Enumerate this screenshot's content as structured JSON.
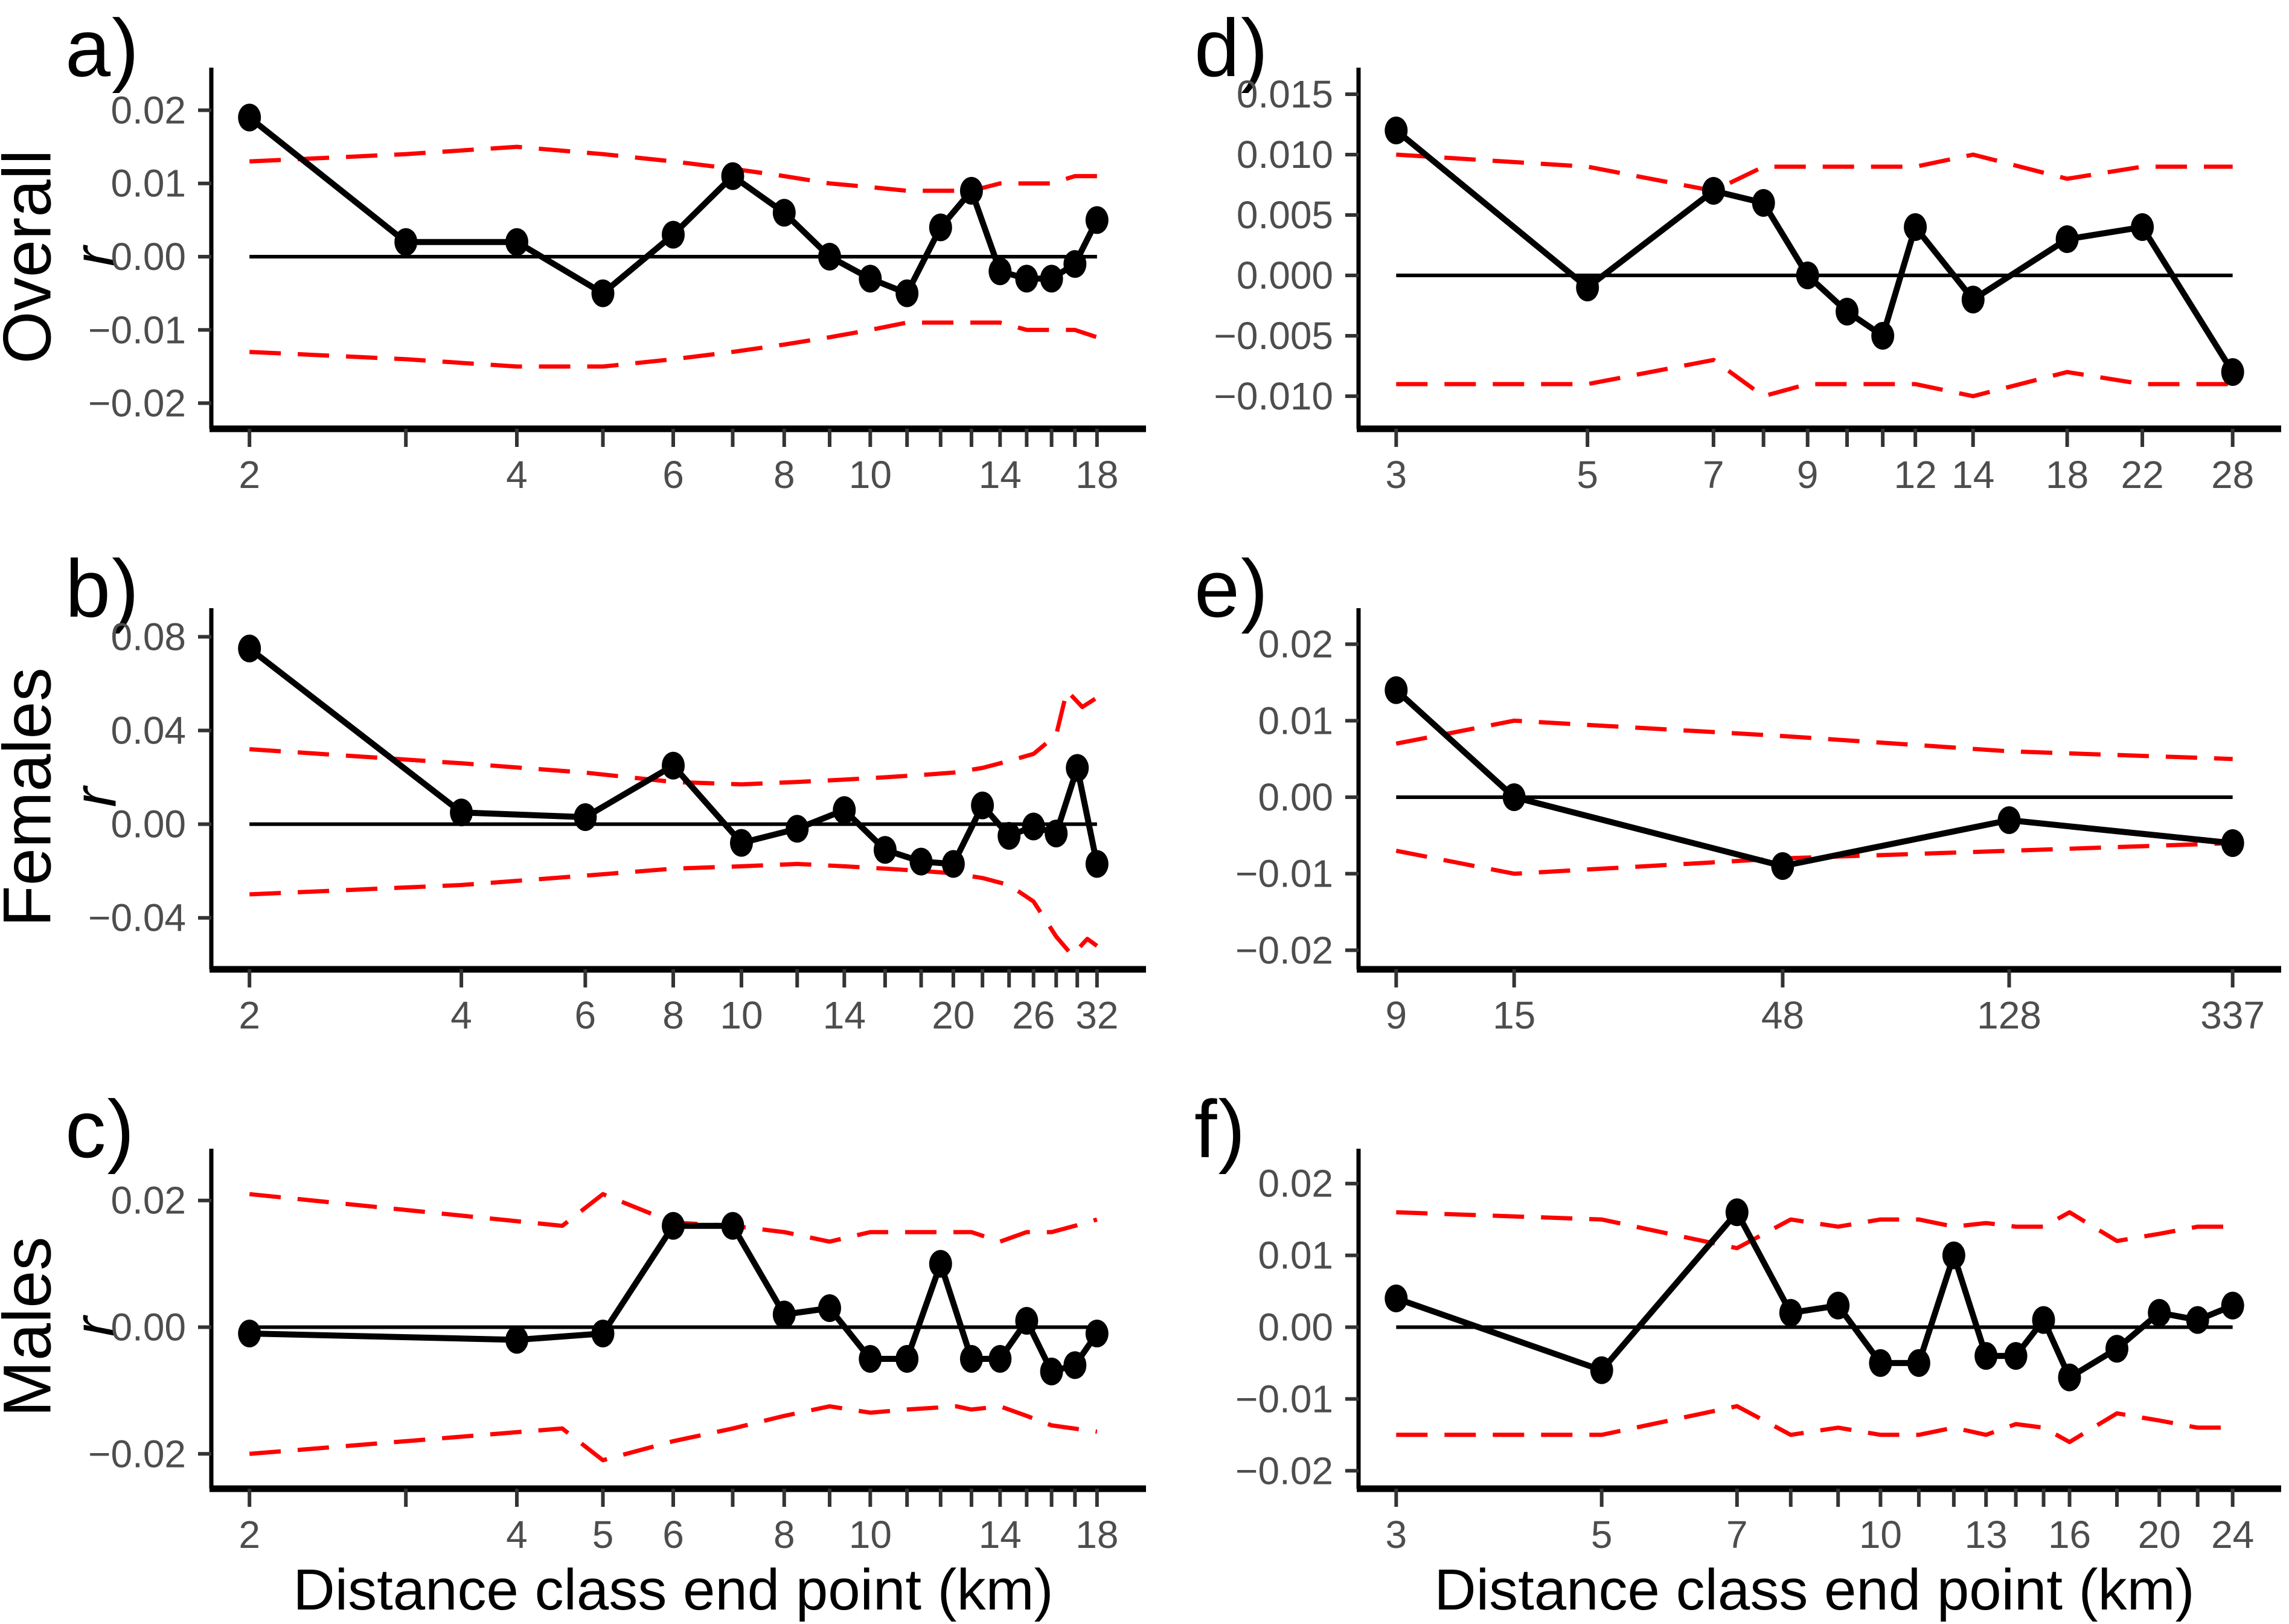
{
  "figure": {
    "xaxis_title": "Distance class end point (km)",
    "colors": {
      "series_line": "#000000",
      "point_fill": "#000000",
      "envelope_red": "#FF0000",
      "zero_line": "#000000",
      "axis_line": "#000000",
      "tick_text": "#4D4D4D"
    }
  },
  "chart_data": [
    {
      "type": "line",
      "letter": "a)",
      "row_label": "Overall",
      "ylabel": "r",
      "x_scale": "log",
      "x_domain": [
        2,
        18
      ],
      "y_domain": [
        -0.0235,
        0.0235
      ],
      "x_ticks": [
        {
          "v": 2,
          "l": "2"
        },
        {
          "v": 3,
          "l": ""
        },
        {
          "v": 4,
          "l": "4"
        },
        {
          "v": 5,
          "l": ""
        },
        {
          "v": 6,
          "l": "6"
        },
        {
          "v": 7,
          "l": ""
        },
        {
          "v": 8,
          "l": "8"
        },
        {
          "v": 9,
          "l": ""
        },
        {
          "v": 10,
          "l": "10"
        },
        {
          "v": 11,
          "l": ""
        },
        {
          "v": 12,
          "l": ""
        },
        {
          "v": 13,
          "l": ""
        },
        {
          "v": 14,
          "l": "14"
        },
        {
          "v": 15,
          "l": ""
        },
        {
          "v": 16,
          "l": ""
        },
        {
          "v": 17,
          "l": ""
        },
        {
          "v": 18,
          "l": "18"
        }
      ],
      "y_ticks": [
        {
          "v": 0.02,
          "l": "0.02"
        },
        {
          "v": 0.01,
          "l": "0.01"
        },
        {
          "v": 0,
          "l": "0.00"
        },
        {
          "v": -0.01,
          "l": "−0.01"
        },
        {
          "v": -0.02,
          "l": "−0.02"
        }
      ],
      "points": {
        "x": [
          2,
          3,
          4,
          5,
          6,
          7,
          8,
          9,
          10,
          11,
          12,
          13,
          14,
          15,
          16,
          17,
          18
        ],
        "y": [
          0.019,
          0.002,
          0.002,
          -0.005,
          0.003,
          0.011,
          0.006,
          0.0,
          -0.003,
          -0.005,
          0.004,
          0.009,
          -0.002,
          -0.003,
          -0.003,
          -0.001,
          0.005
        ]
      },
      "upper": {
        "x": [
          2,
          3,
          4,
          5,
          6,
          7,
          8,
          9,
          10,
          11,
          12,
          13,
          14,
          15,
          16,
          17,
          18
        ],
        "y": [
          0.013,
          0.014,
          0.015,
          0.014,
          0.013,
          0.012,
          0.011,
          0.01,
          0.0095,
          0.009,
          0.009,
          0.009,
          0.01,
          0.01,
          0.01,
          0.011,
          0.011
        ]
      },
      "lower": {
        "x": [
          2,
          3,
          4,
          5,
          6,
          7,
          8,
          9,
          10,
          11,
          12,
          13,
          14,
          15,
          16,
          17,
          18
        ],
        "y": [
          -0.013,
          -0.014,
          -0.015,
          -0.015,
          -0.014,
          -0.013,
          -0.012,
          -0.011,
          -0.01,
          -0.009,
          -0.009,
          -0.009,
          -0.009,
          -0.01,
          -0.01,
          -0.01,
          -0.011
        ]
      },
      "zero_line": true
    },
    {
      "type": "line",
      "letter": "b)",
      "row_label": "Females",
      "ylabel": "r",
      "x_scale": "log",
      "x_domain": [
        2,
        32
      ],
      "y_domain": [
        -0.062,
        0.085
      ],
      "x_ticks": [
        {
          "v": 2,
          "l": "2"
        },
        {
          "v": 4,
          "l": "4"
        },
        {
          "v": 6,
          "l": "6"
        },
        {
          "v": 8,
          "l": "8"
        },
        {
          "v": 10,
          "l": "10"
        },
        {
          "v": 12,
          "l": ""
        },
        {
          "v": 14,
          "l": "14"
        },
        {
          "v": 16,
          "l": ""
        },
        {
          "v": 18,
          "l": ""
        },
        {
          "v": 20,
          "l": "20"
        },
        {
          "v": 22,
          "l": ""
        },
        {
          "v": 24,
          "l": ""
        },
        {
          "v": 26,
          "l": "26"
        },
        {
          "v": 28,
          "l": ""
        },
        {
          "v": 30,
          "l": ""
        },
        {
          "v": 32,
          "l": "32"
        }
      ],
      "y_ticks": [
        {
          "v": 0.08,
          "l": "0.08"
        },
        {
          "v": 0.04,
          "l": "0.04"
        },
        {
          "v": 0,
          "l": "0.00"
        },
        {
          "v": -0.04,
          "l": "−0.04"
        }
      ],
      "points": {
        "x": [
          2,
          4,
          6,
          8,
          10,
          12,
          14,
          16,
          18,
          20,
          22,
          24,
          26,
          28,
          30,
          32
        ],
        "y": [
          0.075,
          0.005,
          0.003,
          0.025,
          -0.008,
          -0.002,
          0.006,
          -0.011,
          -0.016,
          -0.017,
          0.008,
          -0.005,
          -0.001,
          -0.004,
          0.024,
          -0.017
        ]
      },
      "upper": {
        "x": [
          2,
          4,
          6,
          8,
          10,
          12,
          14,
          16,
          18,
          20,
          22,
          24,
          26,
          28,
          29,
          30.5,
          32
        ],
        "y": [
          0.032,
          0.026,
          0.022,
          0.018,
          0.017,
          0.018,
          0.019,
          0.02,
          0.021,
          0.022,
          0.024,
          0.027,
          0.03,
          0.038,
          0.057,
          0.05,
          0.054
        ]
      },
      "lower": {
        "x": [
          2,
          4,
          6,
          8,
          10,
          12,
          14,
          16,
          18,
          20,
          22,
          24,
          26,
          28,
          29.5,
          31,
          32
        ],
        "y": [
          -0.03,
          -0.026,
          -0.022,
          -0.019,
          -0.018,
          -0.017,
          -0.018,
          -0.019,
          -0.02,
          -0.021,
          -0.023,
          -0.026,
          -0.033,
          -0.048,
          -0.056,
          -0.049,
          -0.052
        ]
      },
      "zero_line": true
    },
    {
      "type": "line",
      "letter": "c)",
      "row_label": "Males",
      "ylabel": "r",
      "x_scale": "log",
      "x_domain": [
        2,
        18
      ],
      "y_domain": [
        -0.0255,
        0.0255
      ],
      "x_ticks": [
        {
          "v": 2,
          "l": "2"
        },
        {
          "v": 3,
          "l": ""
        },
        {
          "v": 4,
          "l": "4"
        },
        {
          "v": 5,
          "l": "5"
        },
        {
          "v": 6,
          "l": "6"
        },
        {
          "v": 7,
          "l": ""
        },
        {
          "v": 8,
          "l": "8"
        },
        {
          "v": 9,
          "l": ""
        },
        {
          "v": 10,
          "l": "10"
        },
        {
          "v": 11,
          "l": ""
        },
        {
          "v": 12,
          "l": ""
        },
        {
          "v": 13,
          "l": ""
        },
        {
          "v": 14,
          "l": "14"
        },
        {
          "v": 15,
          "l": ""
        },
        {
          "v": 16,
          "l": ""
        },
        {
          "v": 17,
          "l": ""
        },
        {
          "v": 18,
          "l": "18"
        }
      ],
      "y_ticks": [
        {
          "v": 0.02,
          "l": "0.02"
        },
        {
          "v": 0,
          "l": "0.00"
        },
        {
          "v": -0.02,
          "l": "−0.02"
        }
      ],
      "points": {
        "x": [
          2,
          4,
          5,
          6,
          7,
          8,
          9,
          10,
          11,
          12,
          13,
          14,
          15,
          16,
          17,
          18
        ],
        "y": [
          -0.001,
          -0.002,
          -0.001,
          0.016,
          0.016,
          0.002,
          0.003,
          -0.005,
          -0.005,
          0.01,
          -0.005,
          -0.005,
          0.001,
          -0.007,
          -0.006,
          -0.001
        ]
      },
      "upper": {
        "x": [
          2,
          4.5,
          5,
          6,
          7,
          8,
          9,
          10,
          12,
          13,
          14,
          15,
          16,
          17,
          18
        ],
        "y": [
          0.021,
          0.016,
          0.021,
          0.0165,
          0.016,
          0.015,
          0.0135,
          0.015,
          0.015,
          0.015,
          0.0135,
          0.015,
          0.015,
          0.016,
          0.017
        ]
      },
      "lower": {
        "x": [
          2,
          4.5,
          5,
          6,
          7,
          8,
          9,
          10,
          11,
          12.5,
          13,
          14,
          15,
          16,
          18
        ],
        "y": [
          -0.02,
          -0.016,
          -0.021,
          -0.018,
          -0.016,
          -0.014,
          -0.0125,
          -0.0135,
          -0.013,
          -0.0125,
          -0.013,
          -0.0125,
          -0.014,
          -0.0155,
          -0.0165
        ]
      },
      "zero_line": true
    },
    {
      "type": "line",
      "letter": "d)",
      "row_label": null,
      "ylabel": "r",
      "x_scale": "log",
      "x_domain": [
        3,
        28
      ],
      "y_domain": [
        -0.0127,
        0.0158
      ],
      "x_ticks": [
        {
          "v": 3,
          "l": "3"
        },
        {
          "v": 5,
          "l": "5"
        },
        {
          "v": 7,
          "l": "7"
        },
        {
          "v": 8,
          "l": ""
        },
        {
          "v": 9,
          "l": "9"
        },
        {
          "v": 10,
          "l": ""
        },
        {
          "v": 11,
          "l": ""
        },
        {
          "v": 12,
          "l": "12"
        },
        {
          "v": 14,
          "l": "14"
        },
        {
          "v": 18,
          "l": "18"
        },
        {
          "v": 22,
          "l": "22"
        },
        {
          "v": 28,
          "l": "28"
        }
      ],
      "y_ticks": [
        {
          "v": 0.015,
          "l": "0.015"
        },
        {
          "v": 0.01,
          "l": "0.010"
        },
        {
          "v": 0.005,
          "l": "0.005"
        },
        {
          "v": 0,
          "l": "0.000"
        },
        {
          "v": -0.005,
          "l": "−0.005"
        },
        {
          "v": -0.01,
          "l": "−0.010"
        }
      ],
      "points": {
        "x": [
          3,
          5,
          7,
          8,
          9,
          10,
          11,
          12,
          14,
          18,
          22,
          28
        ],
        "y": [
          0.012,
          -0.001,
          0.007,
          0.006,
          0.0,
          -0.003,
          -0.005,
          0.004,
          -0.002,
          0.003,
          0.004,
          -0.008
        ]
      },
      "upper": {
        "x": [
          3,
          5,
          7,
          8,
          9,
          10,
          11,
          12,
          14,
          18,
          22,
          28
        ],
        "y": [
          0.01,
          0.009,
          0.007,
          0.009,
          0.009,
          0.009,
          0.009,
          0.009,
          0.01,
          0.008,
          0.009,
          0.009
        ]
      },
      "lower": {
        "x": [
          3,
          5,
          7,
          8,
          9,
          10,
          11,
          12,
          14,
          18,
          22,
          28
        ],
        "y": [
          -0.009,
          -0.009,
          -0.007,
          -0.01,
          -0.009,
          -0.009,
          -0.009,
          -0.009,
          -0.01,
          -0.008,
          -0.009,
          -0.009
        ]
      },
      "zero_line": true
    },
    {
      "type": "line",
      "letter": "e)",
      "row_label": null,
      "ylabel": "r",
      "x_scale": "log",
      "x_domain": [
        9,
        337
      ],
      "y_domain": [
        -0.0225,
        0.0225
      ],
      "x_ticks": [
        {
          "v": 9,
          "l": "9"
        },
        {
          "v": 15,
          "l": "15"
        },
        {
          "v": 48,
          "l": "48"
        },
        {
          "v": 128,
          "l": "128"
        },
        {
          "v": 337,
          "l": "337"
        }
      ],
      "y_ticks": [
        {
          "v": 0.02,
          "l": "0.02"
        },
        {
          "v": 0.01,
          "l": "0.01"
        },
        {
          "v": 0,
          "l": "0.00"
        },
        {
          "v": -0.01,
          "l": "−0.01"
        },
        {
          "v": -0.02,
          "l": "−0.02"
        }
      ],
      "points": {
        "x": [
          9,
          15,
          48,
          128,
          337
        ],
        "y": [
          0.014,
          0.0,
          -0.009,
          -0.003,
          -0.006
        ]
      },
      "upper": {
        "x": [
          9,
          15,
          48,
          128,
          337
        ],
        "y": [
          0.007,
          0.01,
          0.008,
          0.006,
          0.005
        ]
      },
      "lower": {
        "x": [
          9,
          15,
          48,
          128,
          337
        ],
        "y": [
          -0.007,
          -0.01,
          -0.008,
          -0.007,
          -0.006
        ]
      },
      "zero_line": true
    },
    {
      "type": "line",
      "letter": "f)",
      "row_label": null,
      "ylabel": "r",
      "x_scale": "log",
      "x_domain": [
        3,
        24
      ],
      "y_domain": [
        -0.0225,
        0.0225
      ],
      "x_ticks": [
        {
          "v": 3,
          "l": "3"
        },
        {
          "v": 5,
          "l": "5"
        },
        {
          "v": 7,
          "l": "7"
        },
        {
          "v": 8,
          "l": ""
        },
        {
          "v": 9,
          "l": ""
        },
        {
          "v": 10,
          "l": "10"
        },
        {
          "v": 11,
          "l": ""
        },
        {
          "v": 12,
          "l": ""
        },
        {
          "v": 13,
          "l": "13"
        },
        {
          "v": 14,
          "l": ""
        },
        {
          "v": 15,
          "l": ""
        },
        {
          "v": 16,
          "l": "16"
        },
        {
          "v": 18,
          "l": ""
        },
        {
          "v": 20,
          "l": "20"
        },
        {
          "v": 22,
          "l": ""
        },
        {
          "v": 24,
          "l": "24"
        }
      ],
      "y_ticks": [
        {
          "v": 0.02,
          "l": "0.02"
        },
        {
          "v": 0.01,
          "l": "0.01"
        },
        {
          "v": 0,
          "l": "0.00"
        },
        {
          "v": -0.01,
          "l": "−0.01"
        },
        {
          "v": -0.02,
          "l": "−0.02"
        }
      ],
      "points": {
        "x": [
          3,
          5,
          7,
          8,
          9,
          10,
          11,
          12,
          13,
          14,
          15,
          16,
          18,
          20,
          22,
          24
        ],
        "y": [
          0.004,
          -0.006,
          0.016,
          0.002,
          0.003,
          -0.005,
          -0.005,
          0.01,
          -0.004,
          -0.004,
          0.001,
          -0.007,
          -0.003,
          0.002,
          0.001,
          0.003
        ]
      },
      "upper": {
        "x": [
          3,
          5,
          7,
          8,
          9,
          10,
          11,
          12,
          13,
          14,
          15,
          16,
          18,
          20,
          22,
          24
        ],
        "y": [
          0.016,
          0.015,
          0.011,
          0.015,
          0.014,
          0.015,
          0.015,
          0.014,
          0.0145,
          0.014,
          0.014,
          0.016,
          0.012,
          0.013,
          0.014,
          0.014
        ]
      },
      "lower": {
        "x": [
          3,
          5,
          7,
          8,
          9,
          10,
          11,
          12,
          13,
          14,
          15,
          16,
          18,
          20,
          22,
          24
        ],
        "y": [
          -0.015,
          -0.015,
          -0.011,
          -0.015,
          -0.014,
          -0.015,
          -0.015,
          -0.014,
          -0.015,
          -0.0135,
          -0.014,
          -0.016,
          -0.012,
          -0.013,
          -0.014,
          -0.014
        ]
      },
      "zero_line": true
    }
  ]
}
